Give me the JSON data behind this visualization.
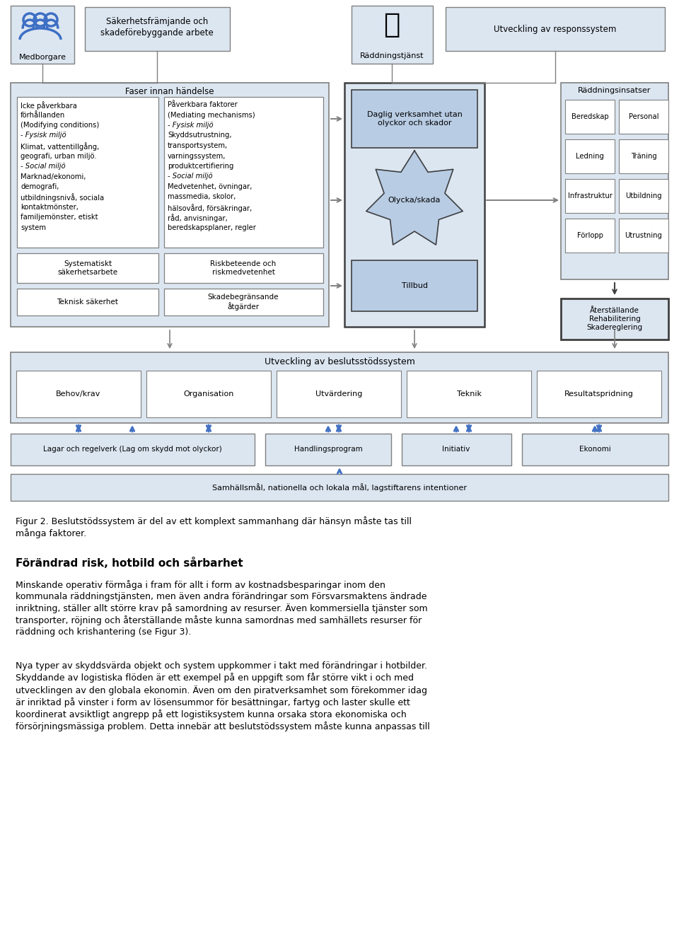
{
  "bg_color": "#ffffff",
  "light": "#dce6f1",
  "white": "#ffffff",
  "dark": "#b8cce4",
  "border": "#808080",
  "border_dark": "#404040",
  "blue_arrow": "#4472c4",
  "title": "Figur 2. Beslutstödssystem är del av ett komplext sammanhang där hänsyn måste tas till\nmånga faktorer.",
  "heading": "Förändrad risk, hotbild och sårbarhet",
  "body1": "Minskande operativ förmåga i fram för allt i form av kostnadsbesparingar inom den\nkommunala räddningstjänsten, men även andra förändringar som Försvarsmaktens ändrade\ninriktning, ställer allt större krav på samordning av resurser. Även kommersiella tjänster som\ntransporter, röjning och återställande måste kunna samordnas med samhällets resurser för\nräddning och krishantering (se Figur 3).",
  "body2": "Nya typer av skyddsvärda objekt och system uppkommer i takt med förändringar i hotbilder.\nSkyddande av logistiska flöden är ett exempel på en uppgift som får större vikt i och med\nutvecklingen av den globala ekonomin. Även om den piratverksamhet som förekommer idag\när inriktad på vinster i form av lösensummor för besättningar, fartyg och laster skulle ett\nkoordinerat avsiktligt angrepp på ett logistiksystem kunna orsaka stora ekonomiska och\nförsörjningsmässiga problem. Detta innebär att beslutstödssystem måste kunna anpassas till"
}
